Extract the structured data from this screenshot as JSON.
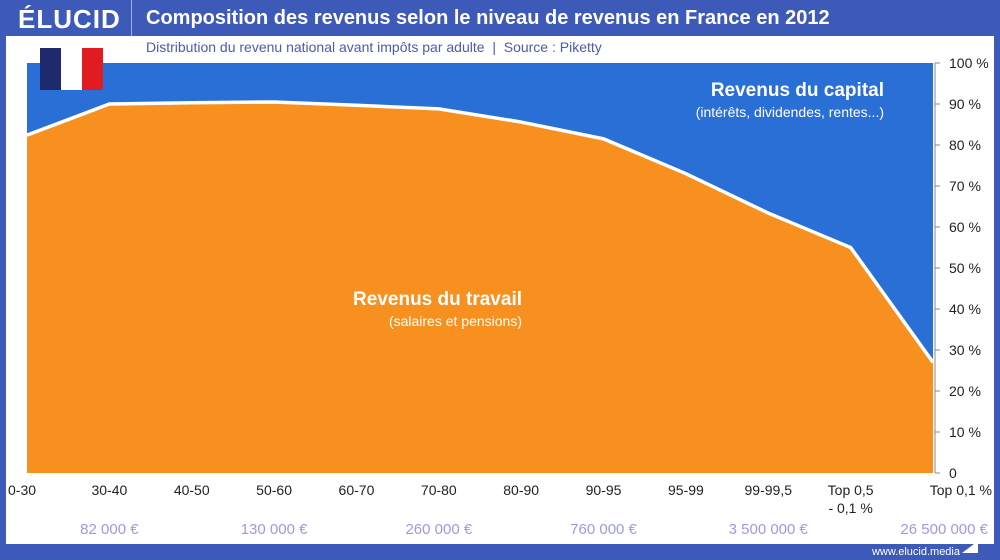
{
  "header": {
    "logo": "ÉLUCID",
    "title": "Composition des revenus selon le niveau de revenus en France en 2012",
    "subtitle": "Distribution du revenu national avant impôts par adulte  |  Source : Piketty"
  },
  "footer": "www.elucid.media",
  "colors": {
    "capital": "#2a6fd6",
    "travail": "#f7901e",
    "header": "#3d5ab8",
    "income_labels": "#9a9ae6"
  },
  "chart_data": {
    "type": "area",
    "stacked": true,
    "ylim": [
      0,
      100
    ],
    "grid": false,
    "y_axis_position": "right",
    "categories": [
      "0-30",
      "30-40",
      "40-50",
      "50-60",
      "60-70",
      "70-80",
      "80-90",
      "90-95",
      "95-99",
      "99-99,5",
      "Top 0,5\n- 0,1 %",
      "Top 0,1 %"
    ],
    "category_labels": [
      [
        "0-30"
      ],
      [
        "30-40"
      ],
      [
        "40-50"
      ],
      [
        "50-60"
      ],
      [
        "60-70"
      ],
      [
        "70-80"
      ],
      [
        "80-90"
      ],
      [
        "90-95"
      ],
      [
        "95-99"
      ],
      [
        "99-99,5"
      ],
      [
        "Top 0,5",
        "- 0,1 %"
      ],
      [
        "Top 0,1 %"
      ]
    ],
    "yticks": [
      "0",
      "10 %",
      "20 %",
      "30 %",
      "40 %",
      "50 %",
      "60 %",
      "70 %",
      "80 %",
      "90 %",
      "100 %"
    ],
    "series": [
      {
        "name": "Revenus du travail",
        "note": "(salaires et pensions)",
        "values": [
          82.4,
          90,
          90.3,
          90.5,
          89.7,
          88.8,
          85.6,
          81.5,
          73,
          63.4,
          55,
          27
        ]
      },
      {
        "name": "Revenus du capital",
        "note": "(intérêts, dividendes, rentes...)",
        "values": [
          17.6,
          10,
          9.7,
          9.5,
          10.3,
          11.2,
          14.4,
          18.5,
          27,
          36.6,
          45,
          73
        ]
      }
    ],
    "income_levels": [
      {
        "at": "30-40",
        "label": "82 000 €"
      },
      {
        "at": "50-60",
        "label": "130 000 €"
      },
      {
        "at": "70-80",
        "label": "260 000 €"
      },
      {
        "at": "90-95",
        "label": "760 000 €"
      },
      {
        "at": "99-99,5",
        "label": "3 500 000 €"
      },
      {
        "at": "Top 0,1 %",
        "label": "26 500 000 €"
      }
    ]
  }
}
